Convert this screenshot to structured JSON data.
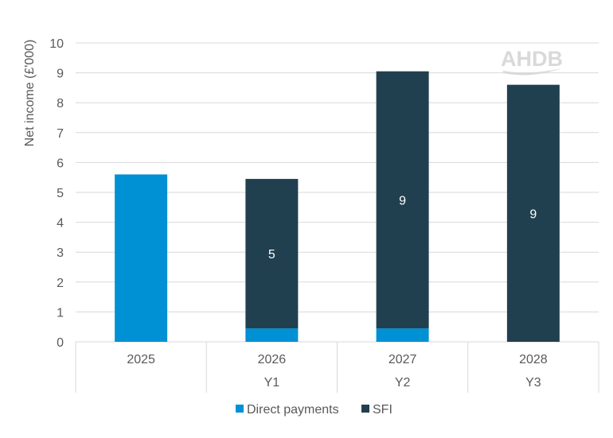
{
  "chart_data": {
    "type": "bar",
    "stacked": true,
    "categories": [
      "2025",
      "2026",
      "2027",
      "2028"
    ],
    "sub_categories": [
      "",
      "Y1",
      "Y2",
      "Y3"
    ],
    "series": [
      {
        "name": "Direct payments",
        "values": [
          5.6,
          0.45,
          0.45,
          0
        ],
        "color": "#0090d4"
      },
      {
        "name": "SFI",
        "values": [
          0,
          5.0,
          8.6,
          8.6
        ],
        "color": "#21404f"
      }
    ],
    "data_labels": [
      "",
      "5",
      "9",
      "9"
    ],
    "ylabel": "Net income (£'000)",
    "ylim": [
      0,
      10
    ],
    "yticks": [
      "0",
      "1",
      "2",
      "3",
      "4",
      "5",
      "6",
      "7",
      "8",
      "9",
      "10"
    ],
    "grid": true,
    "legend_position": "bottom",
    "watermark": "AHDB"
  }
}
